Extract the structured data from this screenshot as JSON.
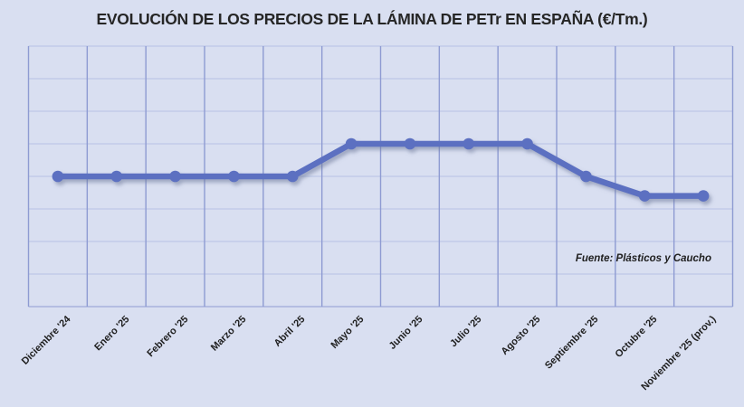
{
  "chart": {
    "title": "EVOLUCIÓN DE LOS PRECIOS DE LA LÁMINA DE PETr EN ESPAÑA (€/Tm.)",
    "source_note": "Fuente: Plásticos y Caucho"
  },
  "chart_data": {
    "type": "line",
    "title": "EVOLUCIÓN DE LOS PRECIOS DE LA LÁMINA DE PETr EN ESPAÑA (€/Tm.)",
    "categories": [
      "Diciembre '24",
      "Enero '25",
      "Febrero '25",
      "Marzo '25",
      "Abril '25",
      "Mayo '25",
      "Junio '25",
      "Julio '25",
      "Agosto '25",
      "Septiembre '25",
      "Octubre '25",
      "Noviembre '25 (prov.)"
    ],
    "values": [
      4,
      4,
      4,
      4,
      4,
      5,
      5,
      5,
      5,
      4,
      3.4,
      3.4
    ],
    "values_note": "y-axis has no visible tick labels; values estimated in gridline units from plot bottom",
    "xlabel": "",
    "ylabel": "",
    "ylim": [
      0,
      8
    ],
    "x_divisions": 12,
    "y_divisions": 8,
    "grid": "on",
    "legend": "none",
    "marker": "circle",
    "annotations": [
      "Fuente: Plásticos y Caucho"
    ],
    "colors": {
      "background": "#d9dff1",
      "line": "#5b6fc1",
      "marker": "#5b6fc1",
      "grid_vertical": "#8e9bd2",
      "grid_horizontal": "#b7c2e5",
      "title_text": "#262626",
      "axis_text": "#1f1f1f",
      "shadow": "#6b7596"
    }
  }
}
